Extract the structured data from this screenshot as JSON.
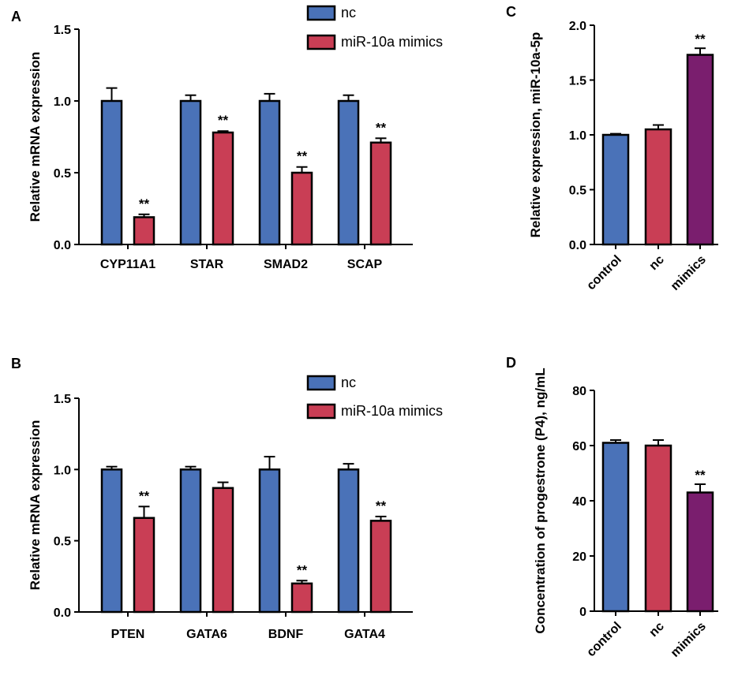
{
  "colors": {
    "nc_grouped": "#4a72b8",
    "mimic_grouped": "#c93e55",
    "control": "#4a72b8",
    "nc": "#c93e55",
    "mimics": "#7a1e6e",
    "stroke": "#000000"
  },
  "chart_data": [
    {
      "panel": "A",
      "type": "bar",
      "ylabel": "Relative mRNA expression",
      "ylim": [
        0,
        1.5
      ],
      "yticks": [
        "0.0",
        "0.5",
        "1.0",
        "1.5"
      ],
      "categories": [
        "CYP11A1",
        "STAR",
        "SMAD2",
        "SCAP"
      ],
      "series": [
        {
          "name": "nc",
          "values": [
            1.0,
            1.0,
            1.0,
            1.0
          ],
          "errors": [
            0.09,
            0.04,
            0.05,
            0.04
          ],
          "sig": [
            "",
            "",
            "",
            ""
          ]
        },
        {
          "name": "miR-10a mimics",
          "values": [
            0.19,
            0.78,
            0.5,
            0.71
          ],
          "errors": [
            0.02,
            0.01,
            0.04,
            0.03
          ],
          "sig": [
            "**",
            "**",
            "**",
            "**"
          ]
        }
      ],
      "legend": [
        "nc",
        "miR-10a mimics"
      ]
    },
    {
      "panel": "B",
      "type": "bar",
      "ylabel": "Relative mRNA expression",
      "ylim": [
        0,
        1.5
      ],
      "yticks": [
        "0.0",
        "0.5",
        "1.0",
        "1.5"
      ],
      "categories": [
        "PTEN",
        "GATA6",
        "BDNF",
        "GATA4"
      ],
      "series": [
        {
          "name": "nc",
          "values": [
            1.0,
            1.0,
            1.0,
            1.0
          ],
          "errors": [
            0.02,
            0.02,
            0.09,
            0.04
          ],
          "sig": [
            "",
            "",
            "",
            ""
          ]
        },
        {
          "name": "miR-10a mimics",
          "values": [
            0.66,
            0.87,
            0.2,
            0.64
          ],
          "errors": [
            0.08,
            0.04,
            0.02,
            0.03
          ],
          "sig": [
            "**",
            "",
            "**",
            "**"
          ]
        }
      ],
      "legend": [
        "nc",
        "miR-10a mimics"
      ]
    },
    {
      "panel": "C",
      "type": "bar",
      "ylabel": "Relative expression, miR-10a-5p",
      "ylim": [
        0,
        2.0
      ],
      "yticks": [
        "0.0",
        "0.5",
        "1.0",
        "1.5",
        "2.0"
      ],
      "categories": [
        "control",
        "nc",
        "mimics"
      ],
      "values": [
        1.0,
        1.05,
        1.73
      ],
      "errors": [
        0.01,
        0.04,
        0.06
      ],
      "sig": [
        "",
        "",
        "**"
      ]
    },
    {
      "panel": "D",
      "type": "bar",
      "ylabel": "Concentration of progestrone (P4), ng/mL",
      "ylim": [
        0,
        80
      ],
      "yticks": [
        "0",
        "20",
        "40",
        "60",
        "80"
      ],
      "categories": [
        "control",
        "nc",
        "mimics"
      ],
      "values": [
        61,
        60,
        43
      ],
      "errors": [
        1.0,
        2.0,
        3.0
      ],
      "sig": [
        "",
        "",
        "**"
      ]
    }
  ]
}
